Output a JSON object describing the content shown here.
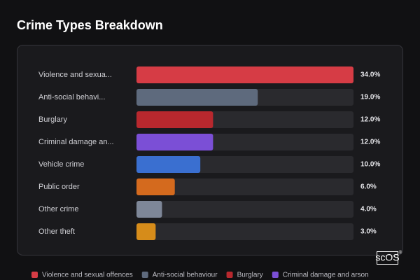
{
  "chart_data": {
    "type": "hbar",
    "title": "Crime Types Breakdown",
    "categories": [
      "Violence and sexua...",
      "Anti-social behavi...",
      "Burglary",
      "Criminal damage an...",
      "Vehicle crime",
      "Public order",
      "Other crime",
      "Other theft"
    ],
    "values": [
      34,
      19,
      12,
      12,
      10,
      6,
      4,
      3
    ],
    "value_labels": [
      "34.0%",
      "19.0%",
      "12.0%",
      "12.0%",
      "10.0%",
      "6.0%",
      "4.0%",
      "3.0%"
    ],
    "colors": [
      "#d63c45",
      "#5e6a7d",
      "#b8282e",
      "#7b4fd6",
      "#3a6fd0",
      "#d46a1e",
      "#7e8798",
      "#d68c1a"
    ],
    "legend": [
      {
        "name": "Violence and sexual offences",
        "color": "#d63c45"
      },
      {
        "name": "Anti-social behaviour",
        "color": "#5e6a7d"
      },
      {
        "name": "Burglary",
        "color": "#b8282e"
      },
      {
        "name": "Criminal damage and arson",
        "color": "#7b4fd6"
      }
    ]
  },
  "watermark": "scOS",
  "watermark_mark": "®"
}
